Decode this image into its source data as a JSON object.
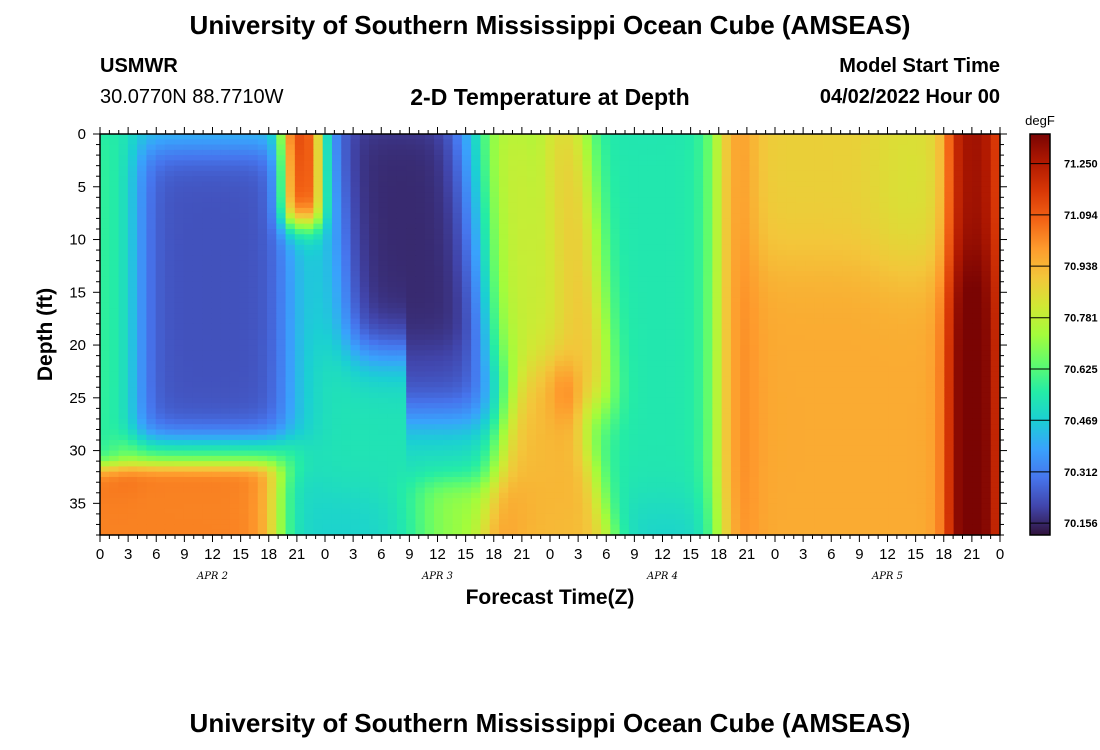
{
  "header": {
    "main_title": "University of Southern Mississippi Ocean Cube (AMSEAS)",
    "station_id": "USMWR",
    "station_coords": "30.0770N  88.7710W",
    "plot_title": "2-D Temperature at Depth",
    "model_start_label": "Model Start Time",
    "model_start_value": "04/02/2022 Hour 00"
  },
  "footer": {
    "repeat_title": "University of Southern Mississippi Ocean Cube (AMSEAS)"
  },
  "chart_data": {
    "type": "heatmap",
    "title": "2-D Temperature at Depth",
    "xlabel": "Forecast Time(Z)",
    "ylabel": "Depth (ft)",
    "x_tick_labels": [
      "0",
      "3",
      "6",
      "9",
      "12",
      "15",
      "18",
      "21",
      "0",
      "3",
      "6",
      "9",
      "12",
      "15",
      "18",
      "21",
      "0",
      "3",
      "6",
      "9",
      "12",
      "15",
      "18",
      "21",
      "0",
      "3",
      "6",
      "9",
      "12",
      "15",
      "18",
      "21",
      "0"
    ],
    "x_range_hours": [
      0,
      96
    ],
    "day_labels": [
      {
        "label": "APR 2",
        "hour": 12
      },
      {
        "label": "APR 3",
        "hour": 36
      },
      {
        "label": "APR 4",
        "hour": 60
      },
      {
        "label": "APR 5",
        "hour": 84
      }
    ],
    "y_tick_labels": [
      "0",
      "5",
      "10",
      "15",
      "20",
      "25",
      "30",
      "35"
    ],
    "y_ticks": [
      0,
      5,
      10,
      15,
      20,
      25,
      30,
      35
    ],
    "y_range": [
      0,
      38
    ],
    "y_inverted": true,
    "depth_row_step_ft": 0.5,
    "colorbar": {
      "unit_label": "degF",
      "tick_labels": [
        "71.250",
        "71.094",
        "70.938",
        "70.781",
        "70.625",
        "70.469",
        "70.312",
        "70.156"
      ],
      "tick_values": [
        71.25,
        71.094,
        70.938,
        70.781,
        70.625,
        70.469,
        70.312,
        70.156
      ],
      "range": [
        70.12,
        71.34
      ],
      "colormap": [
        "#30123b",
        "#4145ab",
        "#4675ed",
        "#39a2fc",
        "#1bcfd4",
        "#24eca6",
        "#61fc6c",
        "#a4fc3b",
        "#d1e834",
        "#f3c63a",
        "#fe9b2d",
        "#f36315",
        "#d93806",
        "#b11901",
        "#7a0403"
      ]
    },
    "features": [
      {
        "region": "surface_layer",
        "hours": [
          0,
          96
        ],
        "depth_ft": [
          0,
          38
        ],
        "value_degF": 70.45,
        "note": "background field"
      },
      {
        "region": "cold_core_day1",
        "hours": [
          4,
          20
        ],
        "depth_ft": [
          2,
          30
        ],
        "value_degF": 70.25
      },
      {
        "region": "warm_plume_day1",
        "hours": [
          19,
          24
        ],
        "depth_ft": [
          0,
          9
        ],
        "value_degF": 71.1
      },
      {
        "region": "warm_bottom_day1",
        "hours": [
          0,
          19
        ],
        "depth_ft": [
          31,
          38
        ],
        "value_degF": 71.0
      },
      {
        "region": "cold_core_day2",
        "hours": [
          25,
          40
        ],
        "depth_ft": [
          0,
          20
        ],
        "value_degF": 70.2
      },
      {
        "region": "warm_band_day2_day3",
        "hours": [
          42,
          52
        ],
        "depth_ft": [
          0,
          38
        ],
        "value_degF": 70.95
      },
      {
        "region": "cool_band_day3",
        "hours": [
          51,
          66
        ],
        "depth_ft": [
          0,
          36
        ],
        "value_degF": 70.55
      },
      {
        "region": "warm_day4_day5",
        "hours": [
          67,
          96
        ],
        "depth_ft": [
          0,
          38
        ],
        "value_degF": 70.88
      },
      {
        "region": "hot_surface_end",
        "hours": [
          91,
          96
        ],
        "depth_ft": [
          0,
          38
        ],
        "value_degF": 71.25
      }
    ]
  }
}
